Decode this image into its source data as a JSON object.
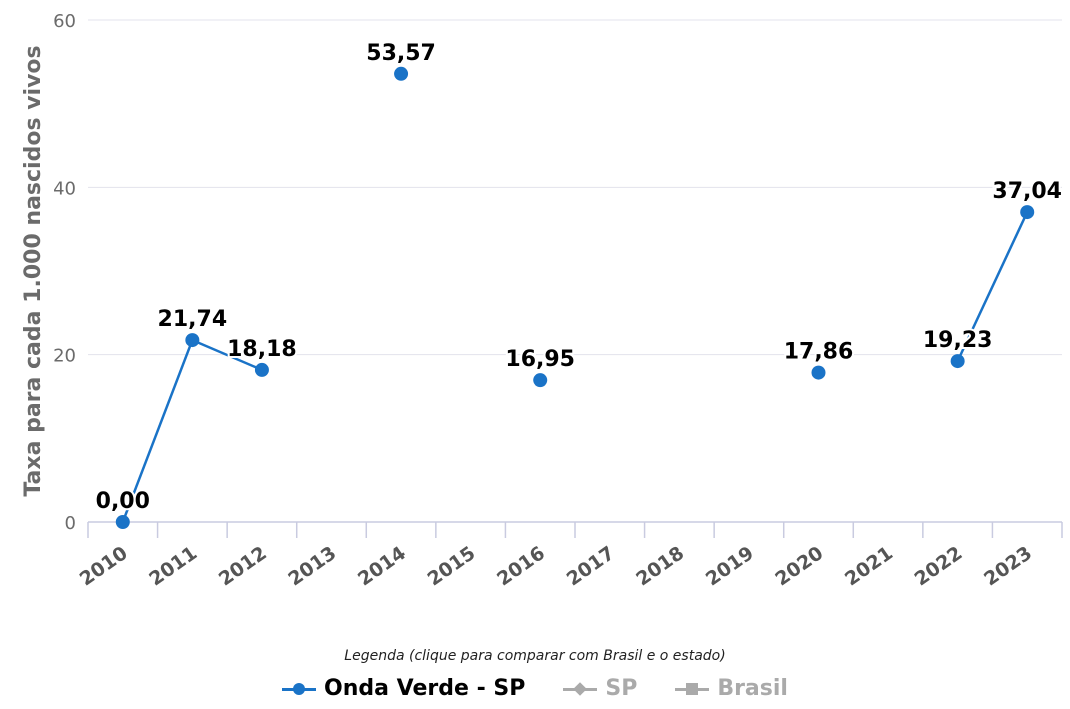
{
  "chart_data": {
    "type": "line",
    "categories": [
      "2010",
      "2011",
      "2012",
      "2013",
      "2014",
      "2015",
      "2016",
      "2017",
      "2018",
      "2019",
      "2020",
      "2021",
      "2022",
      "2023"
    ],
    "series": [
      {
        "name": "Onda Verde - SP",
        "color": "#1a73c7",
        "values": [
          0.0,
          21.74,
          18.18,
          null,
          53.57,
          null,
          16.95,
          null,
          null,
          null,
          17.86,
          null,
          19.23,
          37.04
        ],
        "labels": [
          "0,00",
          "21,74",
          "18,18",
          null,
          "53,57",
          null,
          "16,95",
          null,
          null,
          null,
          "17,86",
          null,
          "19,23",
          "37,04"
        ]
      }
    ],
    "ylabel": "Taxa para cada 1.000 nascidos vivos",
    "ylim": [
      0,
      60
    ],
    "yticks": [
      0,
      20,
      40,
      60
    ],
    "grid": true
  },
  "legend": {
    "title": "Legenda (clique para comparar com Brasil e o estado)",
    "items": [
      {
        "label": "Onda Verde - SP",
        "color": "#1a73c7",
        "symbol": "circle-icon",
        "active": true
      },
      {
        "label": "SP",
        "color": "#aaaaaa",
        "symbol": "diamond-icon",
        "active": false
      },
      {
        "label": "Brasil",
        "color": "#aaaaaa",
        "symbol": "square-icon",
        "active": false
      }
    ]
  }
}
